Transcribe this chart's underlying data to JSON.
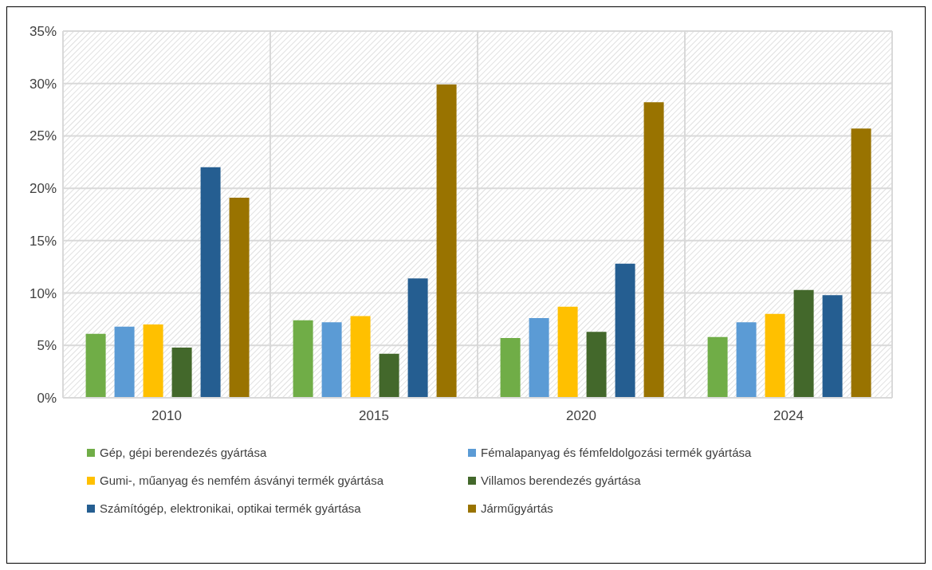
{
  "chart_data": {
    "type": "bar",
    "categories": [
      "2010",
      "2015",
      "2020",
      "2024"
    ],
    "series": [
      {
        "name": "Gép, gépi berendezés gyártása",
        "color": "#70ad47",
        "values": [
          6.1,
          7.4,
          5.7,
          5.8
        ]
      },
      {
        "name": "Fémalapanyag és fémfeldolgozási termék gyártása",
        "color": "#5b9bd5",
        "values": [
          6.8,
          7.2,
          7.6,
          7.2
        ]
      },
      {
        "name": "Gumi-, műanyag és nemfém ásványi termék gyártása",
        "color": "#ffc000",
        "values": [
          7.0,
          7.8,
          8.7,
          8.0
        ]
      },
      {
        "name": "Villamos berendezés gyártása",
        "color": "#43682b",
        "values": [
          4.8,
          4.2,
          6.3,
          10.3
        ]
      },
      {
        "name": "Számítógép, elektronikai, optikai termék gyártása",
        "color": "#255e91",
        "values": [
          22.0,
          11.4,
          12.8,
          9.8
        ]
      },
      {
        "name": "Járműgyártás",
        "color": "#997300",
        "values": [
          19.1,
          29.9,
          28.2,
          25.7
        ]
      }
    ],
    "ylim": [
      0,
      35
    ],
    "yticks": [
      {
        "value": 0,
        "label": "0%"
      },
      {
        "value": 5,
        "label": "5%"
      },
      {
        "value": 10,
        "label": "10%"
      },
      {
        "value": 15,
        "label": "15%"
      },
      {
        "value": 20,
        "label": "20%"
      },
      {
        "value": 25,
        "label": "25%"
      },
      {
        "value": 30,
        "label": "30%"
      },
      {
        "value": 35,
        "label": "35%"
      }
    ],
    "grid": true,
    "legend": "bottom"
  }
}
